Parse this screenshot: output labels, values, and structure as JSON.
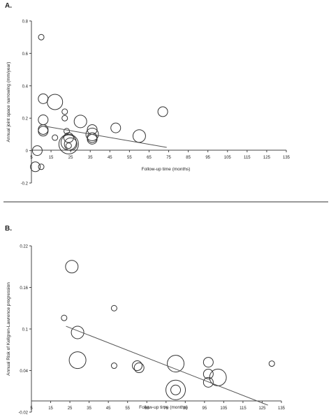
{
  "figure": {
    "separator": true
  },
  "chart_data": [
    {
      "panel_label": "A.",
      "type": "scatter",
      "marker": "open-circle-bubble",
      "xlabel": "Follow-up time (months)",
      "ylabel": "Annual joint space narrowing (mm/year)",
      "xticks": [
        5,
        15,
        25,
        35,
        45,
        55,
        65,
        75,
        85,
        95,
        105,
        115,
        125,
        135
      ],
      "yticks": [
        -0.2,
        0,
        0.2,
        0.4,
        0.6,
        0.8
      ],
      "ytick_labels": [
        "-0.2",
        "0",
        "0.2",
        "0.4",
        "0.6",
        "0.8"
      ],
      "xlim": [
        5,
        135
      ],
      "ylim": [
        -0.2,
        0.8
      ],
      "grid": false,
      "points": [
        {
          "x": 10,
          "y": 0.7,
          "size": 1
        },
        {
          "x": 8,
          "y": 0.0,
          "size": 2
        },
        {
          "x": 7,
          "y": -0.1,
          "size": 2
        },
        {
          "x": 10,
          "y": -0.1,
          "size": 1
        },
        {
          "x": 11,
          "y": 0.32,
          "size": 2
        },
        {
          "x": 11,
          "y": 0.19,
          "size": 2
        },
        {
          "x": 11,
          "y": 0.13,
          "size": 2
        },
        {
          "x": 11,
          "y": 0.12,
          "size": 2
        },
        {
          "x": 17,
          "y": 0.3,
          "size": 4
        },
        {
          "x": 17,
          "y": 0.08,
          "size": 1
        },
        {
          "x": 22,
          "y": 0.24,
          "size": 1
        },
        {
          "x": 22,
          "y": 0.2,
          "size": 1
        },
        {
          "x": 23,
          "y": 0.12,
          "size": 1
        },
        {
          "x": 24,
          "y": 0.08,
          "size": 2
        },
        {
          "x": 24,
          "y": 0.05,
          "size": 4
        },
        {
          "x": 24,
          "y": 0.04,
          "size": 5
        },
        {
          "x": 24,
          "y": 0.03,
          "size": 1
        },
        {
          "x": 25,
          "y": 0.04,
          "size": 3
        },
        {
          "x": 30,
          "y": 0.18,
          "size": 3
        },
        {
          "x": 36,
          "y": 0.13,
          "size": 2
        },
        {
          "x": 36,
          "y": 0.1,
          "size": 3
        },
        {
          "x": 36,
          "y": 0.08,
          "size": 2
        },
        {
          "x": 36,
          "y": 0.07,
          "size": 2
        },
        {
          "x": 48,
          "y": 0.14,
          "size": 2
        },
        {
          "x": 60,
          "y": 0.09,
          "size": 3
        },
        {
          "x": 72,
          "y": 0.24,
          "size": 2
        }
      ],
      "trend_line": {
        "x": [
          12,
          74
        ],
        "y": [
          0.15,
          0.02
        ]
      }
    },
    {
      "panel_label": "B.",
      "type": "scatter",
      "marker": "open-circle-bubble",
      "xlabel": "Follow-up time (months)",
      "ylabel": "Annual Risk of Kellgren-Lawrence progression",
      "xticks": [
        5,
        15,
        25,
        35,
        45,
        55,
        65,
        75,
        85,
        95,
        105,
        115,
        125,
        135
      ],
      "yticks": [
        -0.02,
        0.04,
        0.1,
        0.16,
        0.22
      ],
      "ytick_labels": [
        "-0.02",
        "0.04",
        "0.1",
        "0.16",
        "0.22"
      ],
      "xlim": [
        5,
        135
      ],
      "ylim": [
        -0.02,
        0.22
      ],
      "grid": false,
      "points": [
        {
          "x": 26,
          "y": 0.19,
          "size": 3
        },
        {
          "x": 22,
          "y": 0.116,
          "size": 1
        },
        {
          "x": 29,
          "y": 0.095,
          "size": 3
        },
        {
          "x": 29,
          "y": 0.055,
          "size": 4
        },
        {
          "x": 48,
          "y": 0.13,
          "size": 1
        },
        {
          "x": 48,
          "y": 0.047,
          "size": 1
        },
        {
          "x": 60,
          "y": 0.047,
          "size": 2
        },
        {
          "x": 61,
          "y": 0.044,
          "size": 2
        },
        {
          "x": 80,
          "y": 0.05,
          "size": 4
        },
        {
          "x": 80,
          "y": 0.012,
          "size": 5
        },
        {
          "x": 80,
          "y": 0.012,
          "size": 2
        },
        {
          "x": 97,
          "y": 0.052,
          "size": 2
        },
        {
          "x": 97,
          "y": 0.035,
          "size": 2
        },
        {
          "x": 97,
          "y": 0.023,
          "size": 2
        },
        {
          "x": 102,
          "y": 0.03,
          "size": 4
        },
        {
          "x": 130,
          "y": 0.05,
          "size": 1
        }
      ],
      "trend_line": {
        "x": [
          23,
          128
        ],
        "y": [
          0.104,
          -0.01
        ]
      }
    }
  ]
}
